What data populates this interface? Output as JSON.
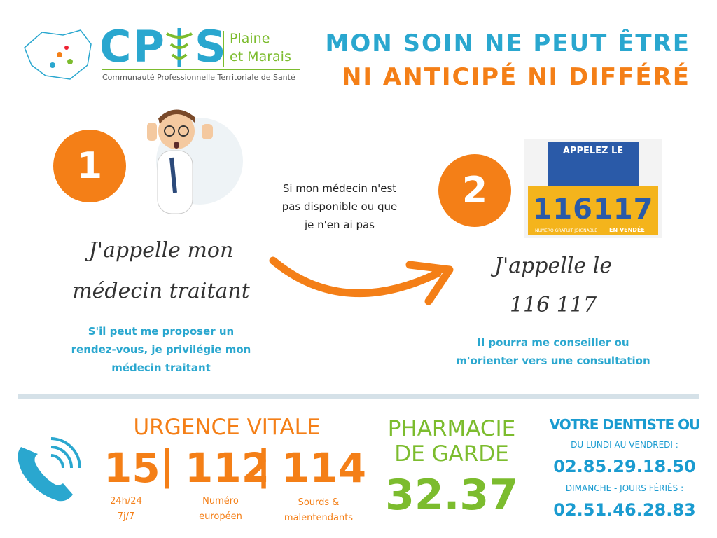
{
  "logo": {
    "left": "CP",
    "right": "S",
    "region_line1": "Plaine",
    "region_line2": "et Marais",
    "tagline": "Communauté Professionnelle Territoriale de Santé"
  },
  "header": {
    "title_line1": "MON SOIN NE PEUT ÊTRE",
    "title_line2": "NI ANTICIPÉ NI DIFFÉRÉ"
  },
  "step1": {
    "number": "1",
    "heading": [
      "J'appelle mon",
      "médecin traitant"
    ],
    "description": [
      "S'il peut me proposer un",
      "rendez-vous, je privilégie mon",
      "médecin traitant"
    ]
  },
  "transition": [
    "Si mon médecin n'est",
    "pas disponible ou que",
    "je n'en ai pas"
  ],
  "step2": {
    "number": "2",
    "sign_title": "APPELEZ LE",
    "sign_number": "116117",
    "sign_small": "NUMÉRO GRATUIT JOIGNABLE",
    "sign_region": "EN VENDÉE",
    "heading": [
      "J'appelle le",
      "116 117"
    ],
    "description": [
      "Il pourra me conseiller ou",
      "m'orienter vers une consultation"
    ]
  },
  "urgence": {
    "title": "URGENCE VITALE",
    "numbers": [
      "15",
      "112",
      "114"
    ],
    "separator": "|",
    "notes": [
      [
        "24h/24",
        "7j/7"
      ],
      [
        "Numéro",
        "européen"
      ],
      [
        "Sourds &",
        "malentendants"
      ]
    ]
  },
  "pharmacie": {
    "title": [
      "PHARMACIE",
      "DE GARDE"
    ],
    "number": "32.37"
  },
  "dentiste": {
    "title": "VOTRE DENTISTE OU",
    "weekday": "DU LUNDI AU VENDREDI :",
    "weekday_phone": "02.85.29.18.50",
    "weekend": "DIMANCHE - JOURS FÉRIÉS :",
    "weekend_phone": "02.51.46.28.83"
  }
}
